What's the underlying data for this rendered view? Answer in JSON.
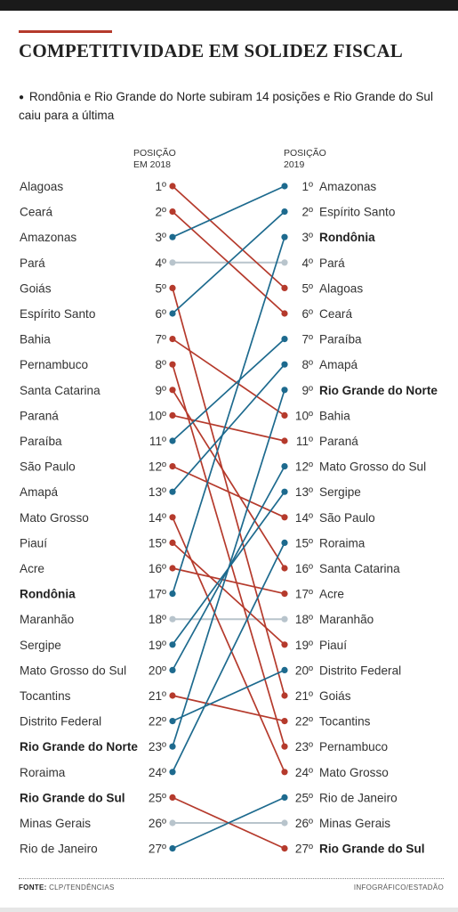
{
  "header": {
    "title": "COMPETITIVIDADE EM SOLIDEZ FISCAL",
    "subtitle_bullet": "●",
    "subtitle": "Rondônia e Rio Grande do Norte subiram 14 posições e Rio Grande do Sul caiu para a última",
    "col_left_label_1": "POSIÇÃO",
    "col_left_label_2": "EM 2018",
    "col_right_label_1": "POSIÇÃO",
    "col_right_label_2": "2019"
  },
  "footer": {
    "source_label": "FONTE:",
    "source": "CLP/TENDÊNCIAS",
    "credit": "INFOGRÁFICO/ESTADÃO"
  },
  "colors": {
    "rise": "#1d6a8e",
    "fall": "#b53a2c",
    "same": "#b8c4cc",
    "accent": "#b53a2c"
  },
  "chart_data": {
    "type": "slope",
    "title": "COMPETITIVIDADE EM SOLIDEZ FISCAL",
    "left_axis": "POSIÇÃO EM 2018",
    "right_axis": "POSIÇÃO 2019",
    "states": [
      {
        "name": "Alagoas",
        "rank_2018": 1,
        "rank_2019": 5
      },
      {
        "name": "Ceará",
        "rank_2018": 2,
        "rank_2019": 6
      },
      {
        "name": "Amazonas",
        "rank_2018": 3,
        "rank_2019": 1
      },
      {
        "name": "Pará",
        "rank_2018": 4,
        "rank_2019": 4
      },
      {
        "name": "Goiás",
        "rank_2018": 5,
        "rank_2019": 21
      },
      {
        "name": "Espírito Santo",
        "rank_2018": 6,
        "rank_2019": 2
      },
      {
        "name": "Bahia",
        "rank_2018": 7,
        "rank_2019": 10
      },
      {
        "name": "Pernambuco",
        "rank_2018": 8,
        "rank_2019": 23
      },
      {
        "name": "Santa Catarina",
        "rank_2018": 9,
        "rank_2019": 16
      },
      {
        "name": "Paraná",
        "rank_2018": 10,
        "rank_2019": 11
      },
      {
        "name": "Paraíba",
        "rank_2018": 11,
        "rank_2019": 7
      },
      {
        "name": "São Paulo",
        "rank_2018": 12,
        "rank_2019": 14
      },
      {
        "name": "Amapá",
        "rank_2018": 13,
        "rank_2019": 8
      },
      {
        "name": "Mato Grosso",
        "rank_2018": 14,
        "rank_2019": 24
      },
      {
        "name": "Piauí",
        "rank_2018": 15,
        "rank_2019": 19
      },
      {
        "name": "Acre",
        "rank_2018": 16,
        "rank_2019": 17
      },
      {
        "name": "Rondônia",
        "rank_2018": 17,
        "rank_2019": 3,
        "bold": true
      },
      {
        "name": "Maranhão",
        "rank_2018": 18,
        "rank_2019": 18
      },
      {
        "name": "Sergipe",
        "rank_2018": 19,
        "rank_2019": 13
      },
      {
        "name": "Mato Grosso do Sul",
        "rank_2018": 20,
        "rank_2019": 12
      },
      {
        "name": "Tocantins",
        "rank_2018": 21,
        "rank_2019": 22
      },
      {
        "name": "Distrito Federal",
        "rank_2018": 22,
        "rank_2019": 20
      },
      {
        "name": "Rio Grande do Norte",
        "rank_2018": 23,
        "rank_2019": 9,
        "bold": true
      },
      {
        "name": "Roraima",
        "rank_2018": 24,
        "rank_2019": 15
      },
      {
        "name": "Rio Grande do Sul",
        "rank_2018": 25,
        "rank_2019": 27,
        "bold": true
      },
      {
        "name": "Minas Gerais",
        "rank_2018": 26,
        "rank_2019": 26
      },
      {
        "name": "Rio de Janeiro",
        "rank_2018": 27,
        "rank_2019": 25
      }
    ],
    "rank_suffix": "º"
  }
}
